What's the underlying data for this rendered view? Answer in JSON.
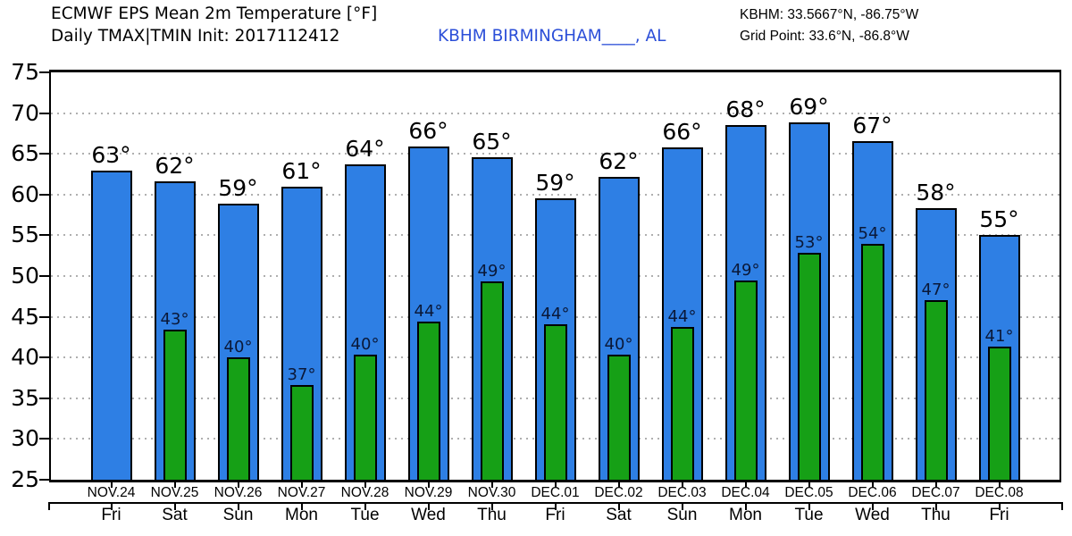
{
  "header": {
    "title_line1": "ECMWF EPS Mean 2m Temperature [°F]",
    "title_line2": "Daily TMAX|TMIN Init: 2017112412",
    "station_label": "KBHM BIRMINGHAM____, AL",
    "station_info_line1": "KBHM: 33.5667°N, -86.75°W",
    "station_info_line2": "Grid Point: 33.6°N, -86.8°W"
  },
  "colors": {
    "tmax_bar": "#2E7FE4",
    "tmin_bar": "#16A016",
    "bar_border": "#000000",
    "station_text": "#2C4FD8",
    "tmax_label": "#000000",
    "tmin_label": "#0A1838",
    "grid_dots": "#AFAFAF",
    "axis": "#000000"
  },
  "chart_data": {
    "type": "bar",
    "title": "ECMWF EPS Mean 2m Temperature [°F]",
    "subtitle": "Daily TMAX|TMIN Init: 2017112412",
    "station": "KBHM BIRMINGHAM____, AL",
    "ylim": [
      25,
      75
    ],
    "yticks": [
      25,
      30,
      35,
      40,
      45,
      50,
      55,
      60,
      65,
      70,
      75
    ],
    "grid": "horizontal-dotted",
    "legend": "none",
    "categories_dates": [
      "NOV.24",
      "NOV.25",
      "NOV.26",
      "NOV.27",
      "NOV.28",
      "NOV.29",
      "NOV.30",
      "DEC.01",
      "DEC.02",
      "DEC.03",
      "DEC.04",
      "DEC.05",
      "DEC.06",
      "DEC.07",
      "DEC.08"
    ],
    "categories_days": [
      "Fri",
      "Sat",
      "Sun",
      "Mon",
      "Tue",
      "Wed",
      "Thu",
      "Fri",
      "Sat",
      "Sun",
      "Mon",
      "Tue",
      "Wed",
      "Thu",
      "Fri"
    ],
    "series": [
      {
        "name": "TMAX",
        "values": [
          62.9,
          61.6,
          58.9,
          61.0,
          63.7,
          65.9,
          64.6,
          59.5,
          62.2,
          65.8,
          68.5,
          68.9,
          66.6,
          58.3,
          55.1
        ],
        "labels": [
          "63°",
          "62°",
          "59°",
          "61°",
          "64°",
          "66°",
          "65°",
          "59°",
          "62°",
          "66°",
          "68°",
          "69°",
          "67°",
          "58°",
          "55°"
        ]
      },
      {
        "name": "TMIN",
        "values": [
          null,
          43.4,
          40.0,
          36.6,
          40.4,
          44.4,
          49.3,
          44.1,
          40.4,
          43.7,
          49.4,
          52.8,
          54.0,
          47.0,
          41.3
        ],
        "labels": [
          null,
          "43°",
          "40°",
          "37°",
          "40°",
          "44°",
          "49°",
          "44°",
          "40°",
          "44°",
          "49°",
          "53°",
          "54°",
          "47°",
          "41°"
        ]
      }
    ]
  }
}
